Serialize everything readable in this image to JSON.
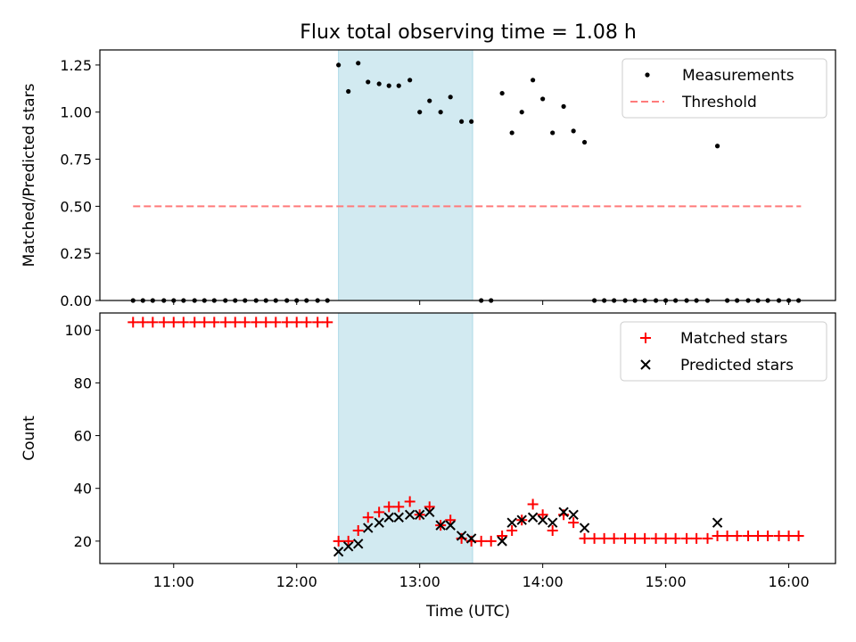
{
  "chart_data": {
    "title": "Flux total observing time = 1.08 h",
    "xlabel": "Time (UTC)",
    "xlim": [
      10.4,
      16.38
    ],
    "xticks": [
      11,
      12,
      13,
      14,
      15,
      16
    ],
    "xtick_labels": [
      "11:00",
      "12:00",
      "13:00",
      "14:00",
      "15:00",
      "16:00"
    ],
    "observing_window": [
      12.34,
      13.43
    ],
    "colors": {
      "window": "#add8e6",
      "measurements": "#000000",
      "threshold": "#ff7b7b",
      "matched": "#ff0000",
      "predicted": "#000000"
    },
    "panels": [
      {
        "type": "scatter",
        "ylabel": "Matched/Predicted stars",
        "ylim": [
          0,
          1.33
        ],
        "yticks": [
          0.0,
          0.25,
          0.5,
          0.75,
          1.0,
          1.25
        ],
        "ytick_labels": [
          "0.00",
          "0.25",
          "0.50",
          "0.75",
          "1.00",
          "1.25"
        ],
        "legend": {
          "position": "top-right",
          "entries": [
            "Measurements",
            "Threshold"
          ]
        },
        "threshold": {
          "name": "Threshold",
          "value": 0.5,
          "x_range": [
            10.67,
            16.1
          ]
        },
        "series": [
          {
            "name": "Measurements",
            "x": [
              10.67,
              10.75,
              10.83,
              10.92,
              11.0,
              11.08,
              11.17,
              11.25,
              11.33,
              11.42,
              11.5,
              11.58,
              11.67,
              11.75,
              11.83,
              11.92,
              12.0,
              12.08,
              12.17,
              12.25,
              12.34,
              12.42,
              12.5,
              12.58,
              12.67,
              12.75,
              12.83,
              12.92,
              13.0,
              13.08,
              13.17,
              13.25,
              13.34,
              13.42,
              13.5,
              13.58,
              13.67,
              13.75,
              13.83,
              13.92,
              14.0,
              14.08,
              14.17,
              14.25,
              14.34,
              14.42,
              14.5,
              14.58,
              14.67,
              14.75,
              14.83,
              14.92,
              15.0,
              15.08,
              15.17,
              15.25,
              15.34,
              15.42,
              15.5,
              15.58,
              15.67,
              15.75,
              15.83,
              15.92,
              16.0,
              16.08
            ],
            "y": [
              0,
              0,
              0,
              0,
              0,
              0,
              0,
              0,
              0,
              0,
              0,
              0,
              0,
              0,
              0,
              0,
              0,
              0,
              0,
              0,
              1.25,
              1.11,
              1.26,
              1.16,
              1.15,
              1.14,
              1.14,
              1.17,
              1.0,
              1.06,
              1.0,
              1.08,
              0.95,
              0.95,
              0,
              0,
              1.1,
              0.89,
              1.0,
              1.17,
              1.07,
              0.89,
              1.03,
              0.9,
              0.84,
              0,
              0,
              0,
              0,
              0,
              0,
              0,
              0,
              0,
              0,
              0,
              0,
              0.82,
              0,
              0,
              0,
              0,
              0,
              0,
              0,
              0
            ]
          }
        ]
      },
      {
        "type": "scatter",
        "ylabel": "Count",
        "ylim": [
          11.5,
          106.5
        ],
        "yticks": [
          20,
          40,
          60,
          80,
          100
        ],
        "ytick_labels": [
          "20",
          "40",
          "60",
          "80",
          "100"
        ],
        "legend": {
          "position": "top-right",
          "entries": [
            "Matched stars",
            "Predicted stars"
          ]
        },
        "series": [
          {
            "name": "Matched stars",
            "marker": "+",
            "x": [
              10.67,
              10.75,
              10.83,
              10.92,
              11.0,
              11.08,
              11.17,
              11.25,
              11.33,
              11.42,
              11.5,
              11.58,
              11.67,
              11.75,
              11.83,
              11.92,
              12.0,
              12.08,
              12.17,
              12.25,
              12.34,
              12.42,
              12.5,
              12.58,
              12.67,
              12.75,
              12.83,
              12.92,
              13.0,
              13.08,
              13.17,
              13.25,
              13.34,
              13.42,
              13.5,
              13.58,
              13.67,
              13.75,
              13.83,
              13.92,
              14.0,
              14.08,
              14.17,
              14.25,
              14.34,
              14.42,
              14.5,
              14.58,
              14.67,
              14.75,
              14.83,
              14.92,
              15.0,
              15.08,
              15.17,
              15.25,
              15.34,
              15.42,
              15.5,
              15.58,
              15.67,
              15.75,
              15.83,
              15.92,
              16.0,
              16.08
            ],
            "y": [
              103,
              103,
              103,
              103,
              103,
              103,
              103,
              103,
              103,
              103,
              103,
              103,
              103,
              103,
              103,
              103,
              103,
              103,
              103,
              103,
              20,
              20,
              24,
              29,
              31,
              33,
              33,
              35,
              30,
              33,
              26,
              28,
              21,
              20,
              20,
              20,
              22,
              24,
              28,
              34,
              30,
              24,
              30,
              27,
              21,
              21,
              21,
              21,
              21,
              21,
              21,
              21,
              21,
              21,
              21,
              21,
              21,
              22,
              22,
              22,
              22,
              22,
              22,
              22,
              22,
              22
            ]
          },
          {
            "name": "Predicted stars",
            "marker": "x",
            "x": [
              12.34,
              12.42,
              12.5,
              12.58,
              12.67,
              12.75,
              12.83,
              12.92,
              13.0,
              13.08,
              13.17,
              13.25,
              13.34,
              13.42,
              13.67,
              13.75,
              13.83,
              13.92,
              14.0,
              14.08,
              14.17,
              14.25,
              14.34,
              15.42
            ],
            "y": [
              16,
              18,
              19,
              25,
              27,
              29,
              29,
              30,
              30,
              31,
              26,
              26,
              22,
              21,
              20,
              27,
              28,
              29,
              28,
              27,
              31,
              30,
              25,
              27
            ]
          }
        ]
      }
    ]
  }
}
